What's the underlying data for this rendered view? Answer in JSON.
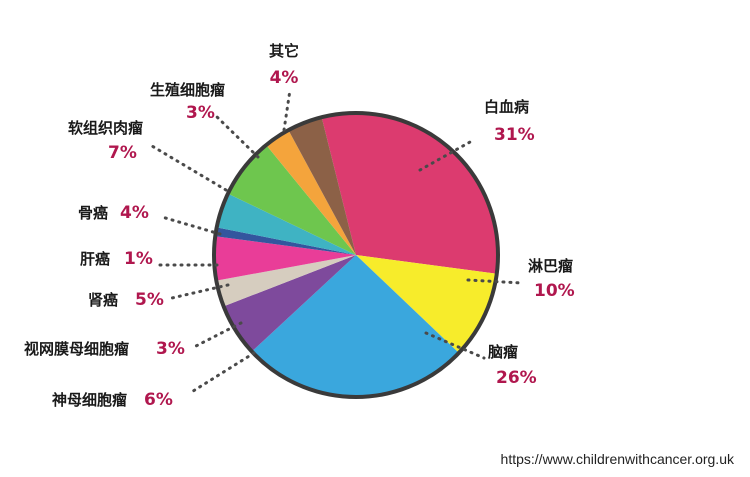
{
  "chart_data": {
    "type": "pie",
    "slices": [
      {
        "label": "白血病",
        "value": 31,
        "value_label": "31%",
        "color": "#dc3b6f"
      },
      {
        "label": "淋巴瘤",
        "value": 10,
        "value_label": "10%",
        "color": "#f7ec2b"
      },
      {
        "label": "脑瘤",
        "value": 26,
        "value_label": "26%",
        "color": "#3aa7dd"
      },
      {
        "label": "神母细胞瘤",
        "value": 6,
        "value_label": "6%",
        "color": "#7e4a9c"
      },
      {
        "label": "视网膜母细胞瘤",
        "value": 3,
        "value_label": "3%",
        "color": "#d6cdbf"
      },
      {
        "label": "肾癌",
        "value": 5,
        "value_label": "5%",
        "color": "#e93d98"
      },
      {
        "label": "肝癌",
        "value": 1,
        "value_label": "1%",
        "color": "#33569e"
      },
      {
        "label": "骨癌",
        "value": 4,
        "value_label": "4%",
        "color": "#3fb3c3"
      },
      {
        "label": "软组织肉瘤",
        "value": 7,
        "value_label": "7%",
        "color": "#6ec64e"
      },
      {
        "label": "生殖细胞瘤",
        "value": 3,
        "value_label": "3%",
        "color": "#f4a43c"
      },
      {
        "label": "其它",
        "value": 4,
        "value_label": "4%",
        "color": "#8c6147"
      }
    ],
    "legend": "none"
  },
  "source_url": "https://www.childrenwithcancer.org.uk"
}
